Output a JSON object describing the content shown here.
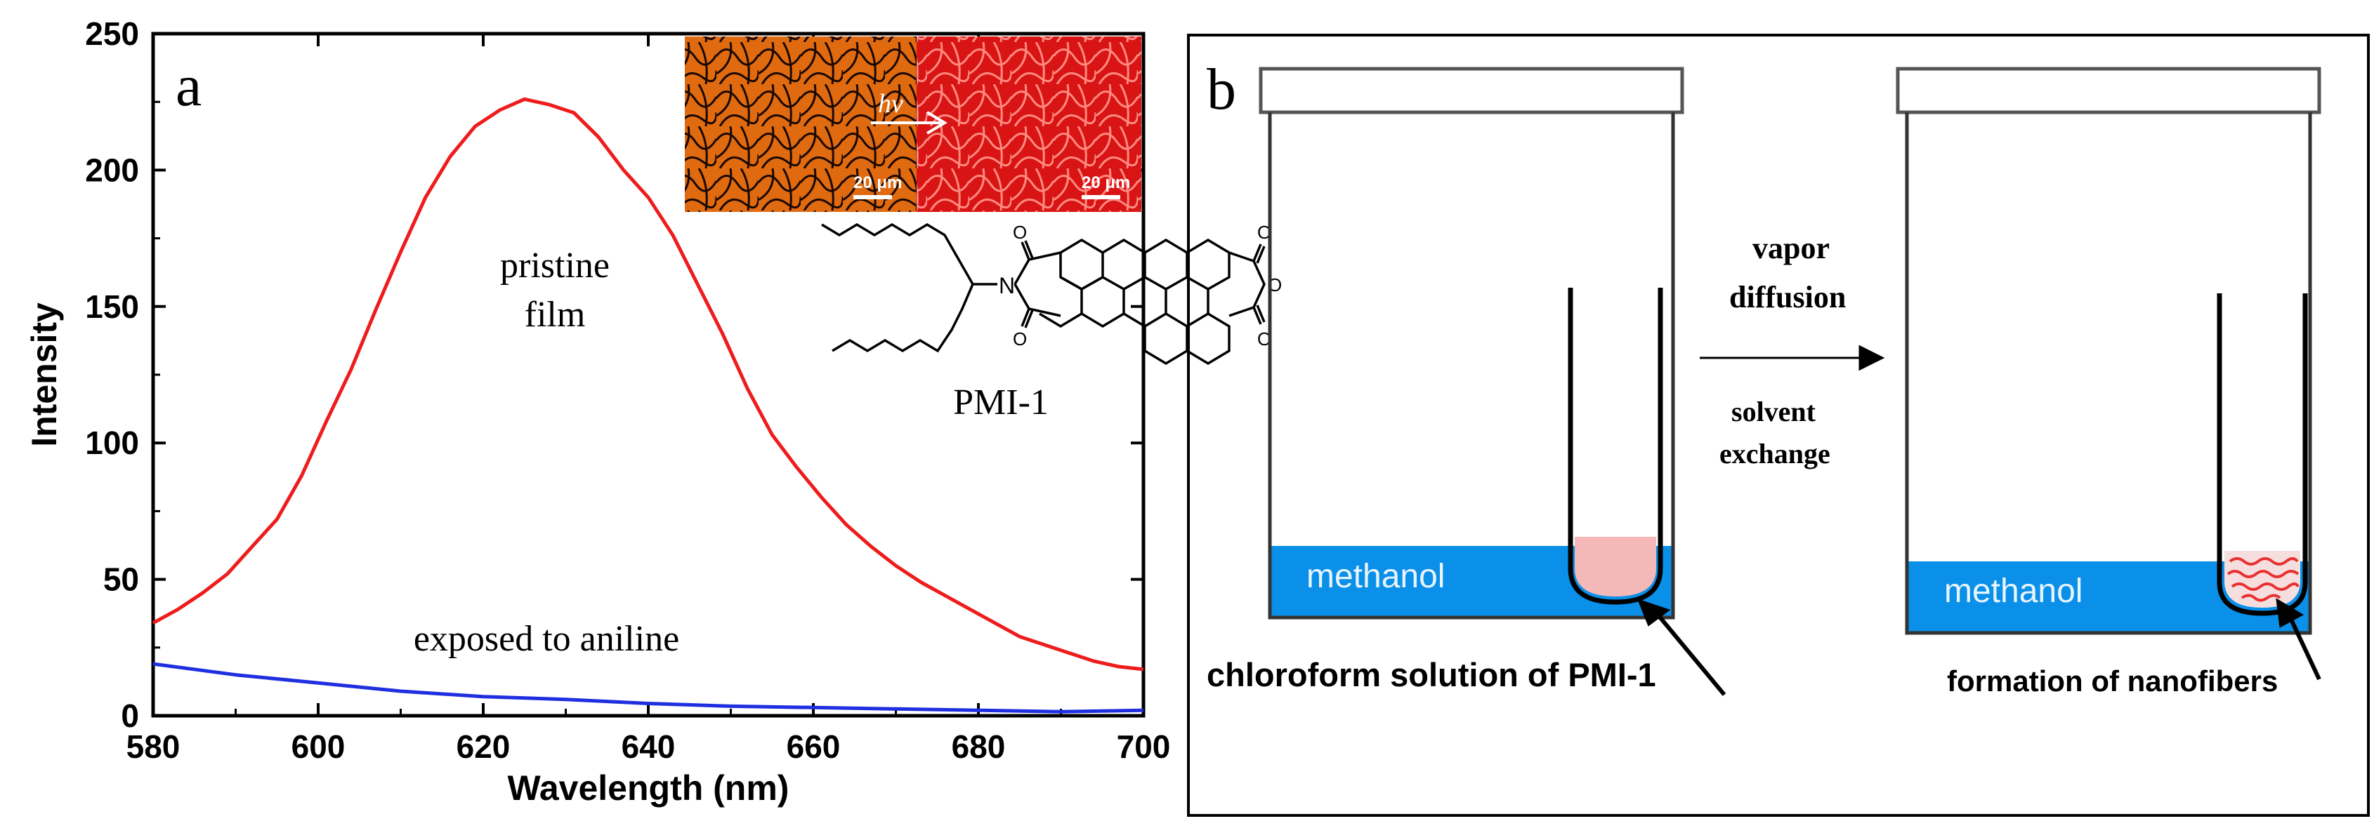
{
  "panel_a": {
    "label": "a",
    "annotations": {
      "pristine_line1": "pristine",
      "pristine_line2": "film",
      "exposed": "exposed to aniline",
      "molecule": "PMI-1",
      "hv": "hν",
      "scale_left": "20 μm",
      "scale_right": "20 μm"
    },
    "colors": {
      "pristine": "#ee1c1c",
      "exposed": "#1f2fe0",
      "inset_left": "#e06a10",
      "inset_right": "#e82020"
    }
  },
  "chart_data": {
    "type": "line",
    "xlabel": "Wavelength (nm)",
    "ylabel": "Intensity",
    "xlim": [
      580,
      700
    ],
    "ylim": [
      0,
      250
    ],
    "xticks": [
      580,
      600,
      620,
      640,
      660,
      680,
      700
    ],
    "yticks": [
      0,
      50,
      100,
      150,
      200,
      250
    ],
    "grid": false,
    "series": [
      {
        "name": "pristine film",
        "color": "#ee1c1c",
        "x": [
          580,
          583,
          586,
          589,
          592,
          595,
          598,
          601,
          604,
          607,
          610,
          613,
          616,
          619,
          622,
          625,
          628,
          631,
          634,
          637,
          640,
          643,
          646,
          649,
          652,
          655,
          658,
          661,
          664,
          667,
          670,
          673,
          676,
          679,
          682,
          685,
          688,
          691,
          694,
          697,
          700
        ],
        "y": [
          34,
          39,
          45,
          52,
          62,
          72,
          88,
          108,
          127,
          149,
          170,
          190,
          205,
          216,
          222,
          226,
          224,
          221,
          212,
          200,
          190,
          176,
          158,
          140,
          120,
          103,
          91,
          80,
          70,
          62,
          55,
          49,
          44,
          39,
          34,
          29,
          26,
          23,
          20,
          18,
          17
        ]
      },
      {
        "name": "exposed to aniline",
        "color": "#1f2fe0",
        "x": [
          580,
          590,
          600,
          610,
          620,
          630,
          640,
          650,
          660,
          670,
          680,
          690,
          700
        ],
        "y": [
          19,
          15,
          12,
          9,
          7,
          6,
          4.5,
          3.5,
          3,
          2.5,
          2,
          1.5,
          2
        ]
      }
    ]
  },
  "panel_b": {
    "label": "b",
    "methanol_left": "methanol",
    "methanol_right": "methanol",
    "arrow_top_line1": "vapor",
    "arrow_top_line2": "diffusion",
    "arrow_bottom_line1": "solvent",
    "arrow_bottom_line2": "exchange",
    "caption_left": "chloroform solution of PMI-1",
    "caption_right": "formation of nanofibers",
    "colors": {
      "methanol": "#0a90e8",
      "solution": "#f4b8b8",
      "fibers": "#e83030"
    }
  }
}
